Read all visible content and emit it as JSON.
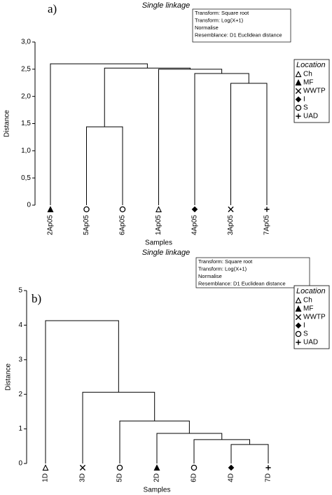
{
  "chart_data": [
    {
      "type": "dendrogram",
      "panel_label": "a)",
      "title": "Single linkage",
      "notes": [
        "Transform: Square root",
        "Transform: Log(X+1)",
        "Normalise",
        "Resemblance: D1 Euclidean distance"
      ],
      "x_label": "Samples",
      "y_label": "Distance",
      "leaves": [
        "2Ap05",
        "5Ap05",
        "6Ap05",
        "1Ap05",
        "4Ap05",
        "3Ap05",
        "7Ap05"
      ],
      "leaf_location": [
        1,
        4,
        4,
        0,
        3,
        2,
        5
      ],
      "merges": [
        {
          "children": [
            1,
            2
          ],
          "height": 1.44
        },
        {
          "children": [
            5,
            6
          ],
          "height": 2.24
        },
        {
          "children": [
            4,
            8
          ],
          "height": 2.42
        },
        {
          "children": [
            3,
            9
          ],
          "height": 2.5
        },
        {
          "children": [
            7,
            10
          ],
          "height": 2.52
        },
        {
          "children": [
            0,
            11
          ],
          "height": 2.6
        }
      ],
      "ylim": [
        0,
        3
      ],
      "yticks": [
        0,
        {
          "value": 0.5,
          "label": "0,5"
        },
        {
          "value": 1,
          "label": "1,0"
        },
        {
          "value": 1.5,
          "label": "1,5"
        },
        {
          "value": 2,
          "label": "2,0"
        },
        {
          "value": 2.5,
          "label": "2,5"
        },
        {
          "value": 3,
          "label": "3,0"
        }
      ],
      "legend_title": "Location",
      "legend_entries": [
        "Ch",
        "MF",
        "WWTP",
        "I",
        "S",
        "UAD"
      ],
      "legend_markers": [
        "open-triangle",
        "triangle",
        "x",
        "diamond",
        "circle",
        "plus"
      ]
    },
    {
      "type": "dendrogram",
      "panel_label": "b)",
      "title": "Single linkage",
      "notes": [
        "Transform: Square root",
        "Transform: Log(X+1)",
        "Normalise",
        "Resemblance: D1 Euclidean distance"
      ],
      "x_label": "Samples",
      "y_label": "Distance",
      "leaves": [
        "1D",
        "3D",
        "5D",
        "2D",
        "6D",
        "4D",
        "7D"
      ],
      "leaf_location": [
        0,
        2,
        4,
        1,
        4,
        3,
        5
      ],
      "merges": [
        {
          "children": [
            5,
            6
          ],
          "height": 0.55
        },
        {
          "children": [
            4,
            7
          ],
          "height": 0.69
        },
        {
          "children": [
            3,
            8
          ],
          "height": 0.87
        },
        {
          "children": [
            2,
            9
          ],
          "height": 1.23
        },
        {
          "children": [
            1,
            10
          ],
          "height": 2.06
        },
        {
          "children": [
            0,
            11
          ],
          "height": 4.13
        }
      ],
      "ylim": [
        0,
        5
      ],
      "yticks": [
        0,
        1,
        2,
        3,
        4,
        5
      ],
      "legend_title": "Location",
      "legend_entries": [
        "Ch",
        "MF",
        "WWTP",
        "I",
        "S",
        "UAD"
      ],
      "legend_markers": [
        "open-triangle",
        "triangle",
        "x",
        "diamond",
        "circle",
        "plus"
      ]
    }
  ]
}
